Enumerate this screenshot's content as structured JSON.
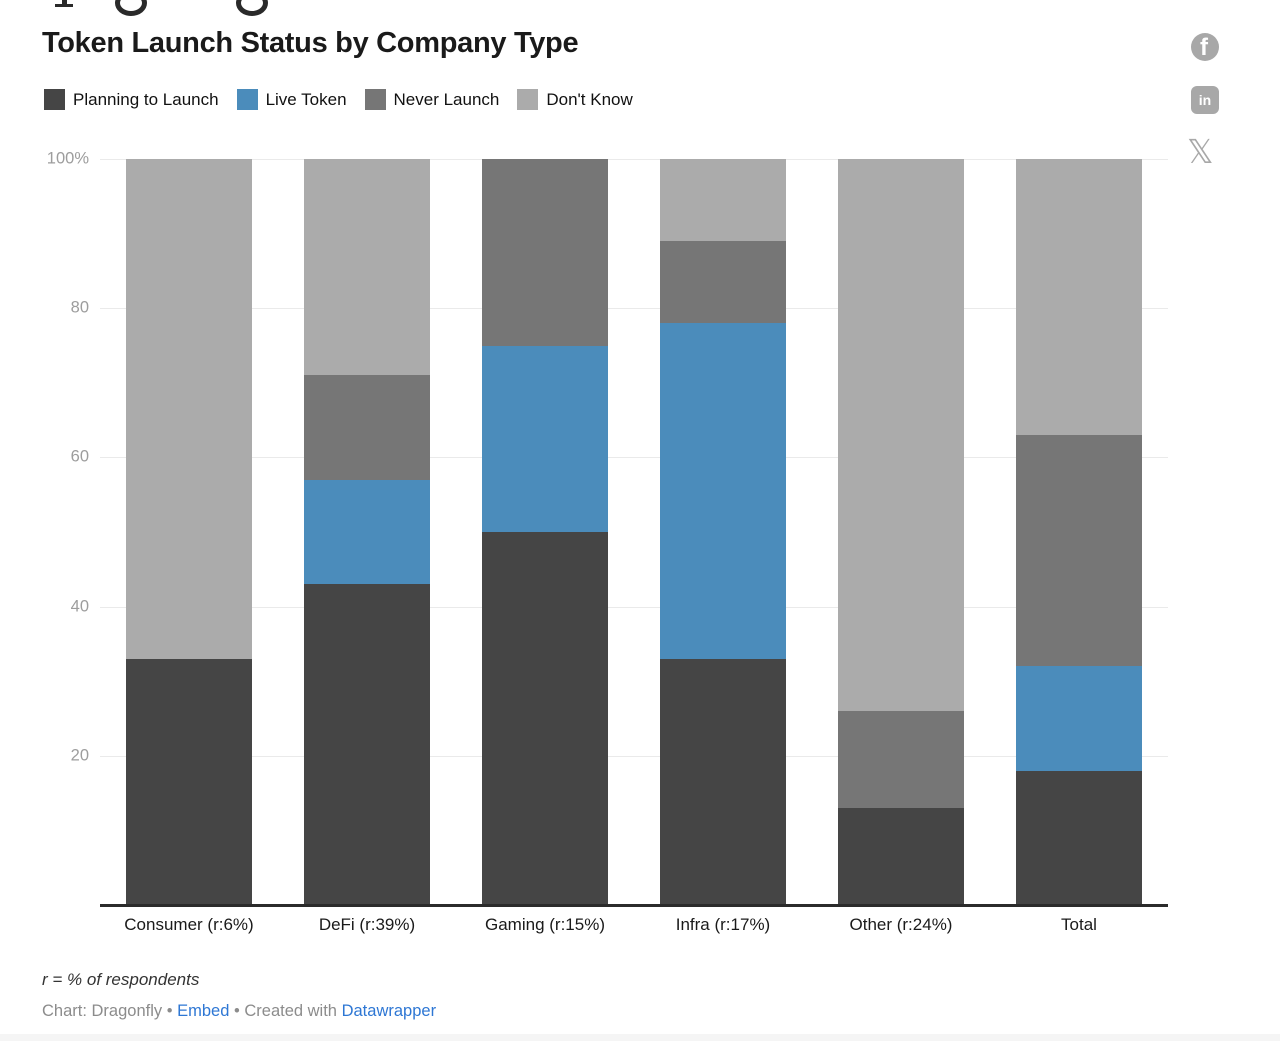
{
  "chart_data": {
    "type": "bar",
    "stacked": true,
    "percent_stacked": true,
    "title": "Token Launch Status by Company Type",
    "xlabel": "",
    "ylabel": "",
    "ylim": [
      0,
      100
    ],
    "grid": true,
    "legend_position": "top",
    "categories": [
      "Consumer (r:6%)",
      "DeFi (r:39%)",
      "Gaming (r:15%)",
      "Infra (r:17%)",
      "Other (r:24%)",
      "Total"
    ],
    "series": [
      {
        "name": "Planning to Launch",
        "color": "#454545",
        "values": [
          33,
          43,
          50,
          33,
          13,
          18
        ]
      },
      {
        "name": "Live Token",
        "color": "#4b8cbb",
        "values": [
          0,
          14,
          25,
          45,
          0,
          14
        ]
      },
      {
        "name": "Never Launch",
        "color": "#767676",
        "values": [
          0,
          14,
          25,
          11,
          13,
          31
        ]
      },
      {
        "name": "Don't Know",
        "color": "#ababab",
        "values": [
          67,
          29,
          0,
          11,
          74,
          37
        ]
      }
    ],
    "yticks": [
      {
        "value": 100,
        "label": "100%"
      },
      {
        "value": 80,
        "label": "80"
      },
      {
        "value": 60,
        "label": "60"
      },
      {
        "value": 40,
        "label": "40"
      },
      {
        "value": 20,
        "label": "20"
      }
    ]
  },
  "share": {
    "icon_color": "#a8a8a8",
    "facebook_glyph": "f",
    "linkedin_glyph": "in",
    "x_glyph": "𝕏"
  },
  "footer": {
    "note": "r = % of respondents",
    "credit_prefix": "Chart: Dragonfly",
    "separator": "•",
    "embed_link": "Embed",
    "created_with": "Created with",
    "datawrapper_link": "Datawrapper",
    "link_color": "#2e77d4"
  }
}
